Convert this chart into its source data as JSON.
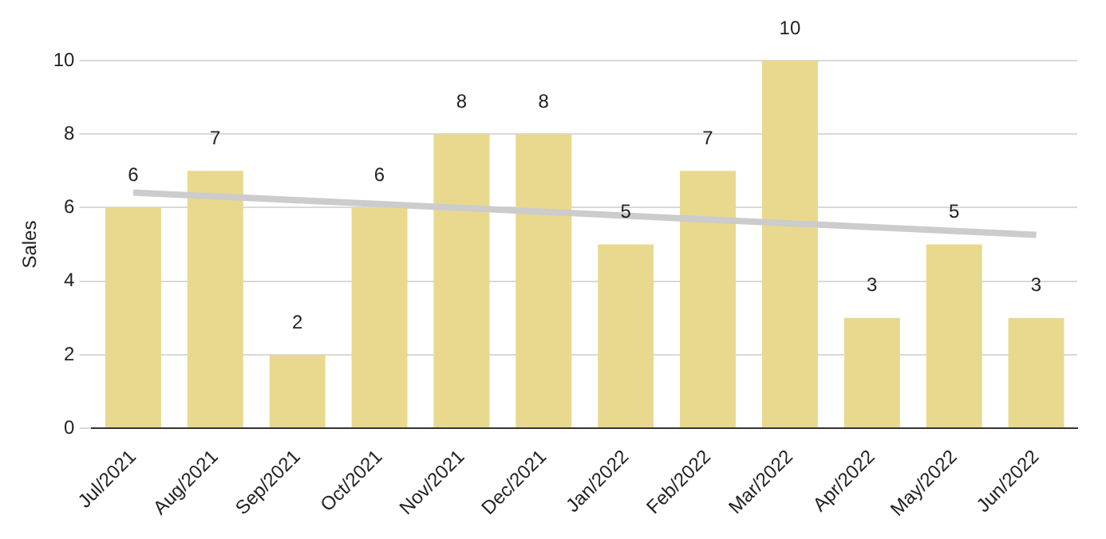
{
  "chart_data": {
    "type": "bar",
    "ylabel": "Sales",
    "categories": [
      "Jul/2021",
      "Aug/2021",
      "Sep/2021",
      "Oct/2021",
      "Nov/2021",
      "Dec/2021",
      "Jan/2022",
      "Feb/2022",
      "Mar/2022",
      "Apr/2022",
      "May/2022",
      "Jun/2022"
    ],
    "series": [
      {
        "color": "#e8d98e",
        "values": [
          6,
          7,
          2,
          6,
          8,
          8,
          5,
          7,
          10,
          3,
          5,
          3
        ],
        "value_labels": [
          "6",
          "7",
          "2",
          "6",
          "8",
          "8",
          "5",
          "7",
          "10",
          "3",
          "5",
          "3"
        ]
      },
      {
        "type": "line",
        "color": "#cccccc",
        "x": [
          "Jul/2021",
          "Jun/2022"
        ],
        "values": [
          6.41,
          5.26
        ]
      }
    ],
    "ylim": [
      0,
      10
    ],
    "yticks": [
      0,
      2,
      4,
      6,
      8,
      10
    ],
    "grid": "y",
    "legend": false
  }
}
